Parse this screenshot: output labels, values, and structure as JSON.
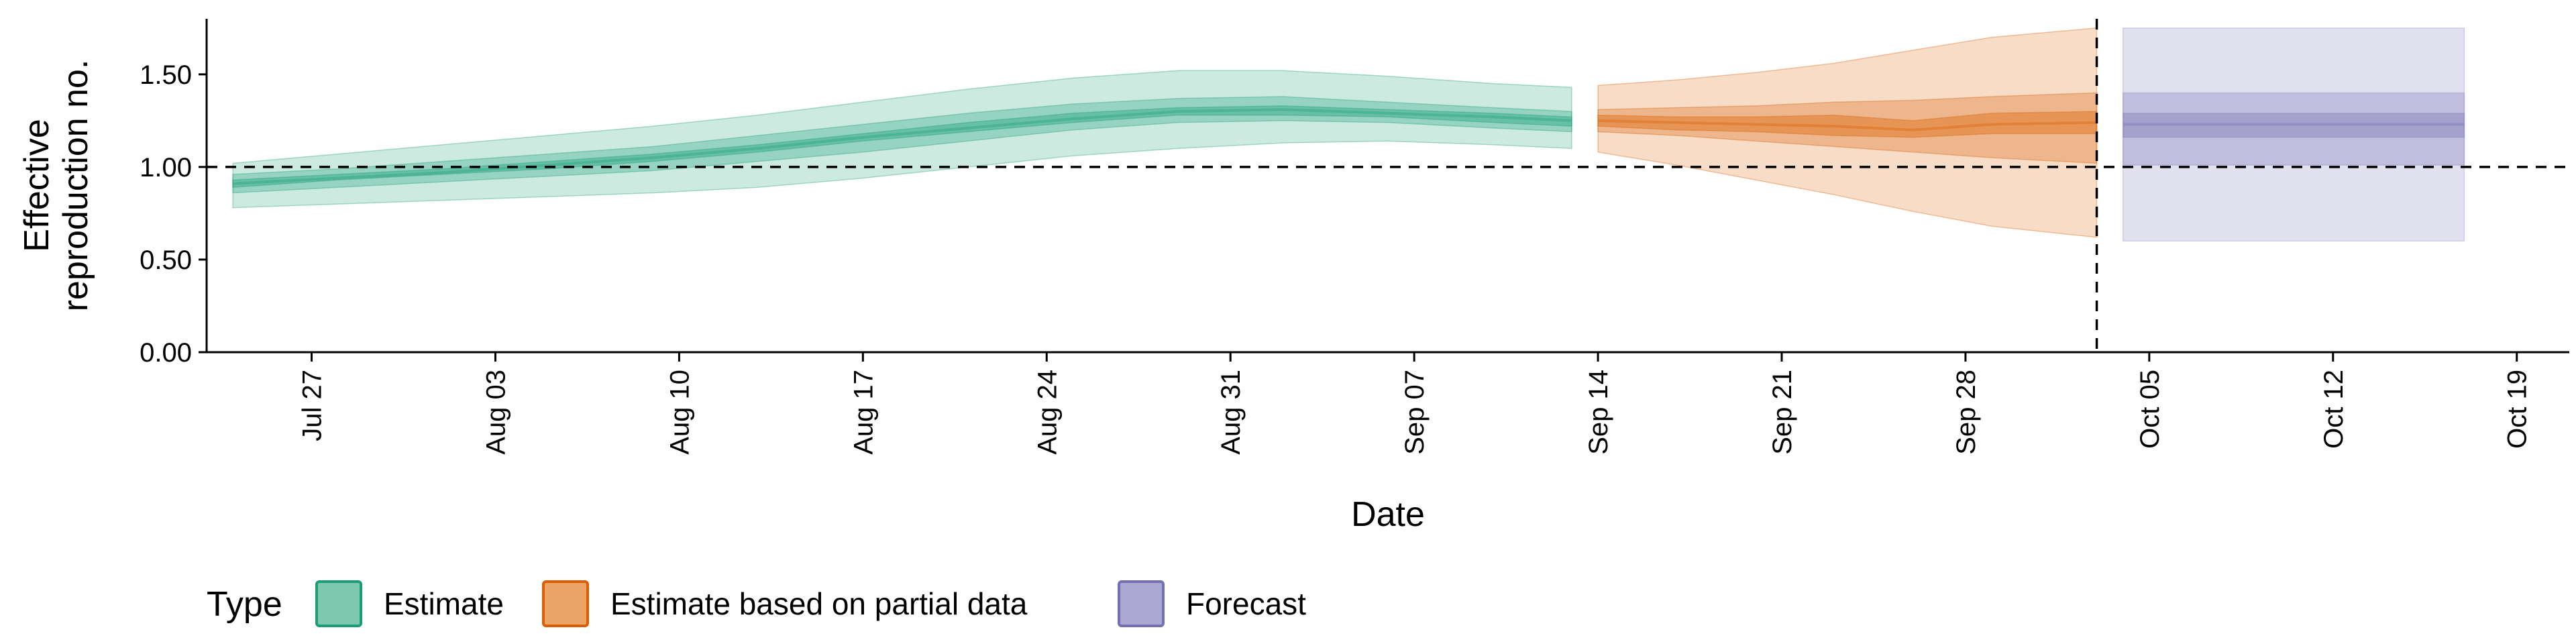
{
  "chart_data": {
    "type": "area",
    "xlabel": "Date",
    "ylabel_lines": [
      "Effective",
      "reproduction no."
    ],
    "ylim": [
      0,
      1.8
    ],
    "xlim": [
      "2020-07-23",
      "2020-10-21"
    ],
    "y_ticks": [
      {
        "value": 0.0,
        "label": "0.00"
      },
      {
        "value": 0.5,
        "label": "0.50"
      },
      {
        "value": 1.0,
        "label": "1.00"
      },
      {
        "value": 1.5,
        "label": "1.50"
      }
    ],
    "x_ticks": [
      {
        "date": "2020-07-27",
        "label": "Jul 27"
      },
      {
        "date": "2020-08-03",
        "label": "Aug 03"
      },
      {
        "date": "2020-08-10",
        "label": "Aug 10"
      },
      {
        "date": "2020-08-17",
        "label": "Aug 17"
      },
      {
        "date": "2020-08-24",
        "label": "Aug 24"
      },
      {
        "date": "2020-08-31",
        "label": "Aug 31"
      },
      {
        "date": "2020-09-07",
        "label": "Sep 07"
      },
      {
        "date": "2020-09-14",
        "label": "Sep 14"
      },
      {
        "date": "2020-09-21",
        "label": "Sep 21"
      },
      {
        "date": "2020-09-28",
        "label": "Sep 28"
      },
      {
        "date": "2020-10-05",
        "label": "Oct 05"
      },
      {
        "date": "2020-10-12",
        "label": "Oct 12"
      },
      {
        "date": "2020-10-19",
        "label": "Oct 19"
      }
    ],
    "hline": 1.0,
    "vline": "2020-10-03",
    "legend": {
      "title": "Type",
      "position": "bottom",
      "items": [
        {
          "label": "Estimate",
          "fill": "#7ec8b0",
          "stroke": "#1b9e77"
        },
        {
          "label": "Estimate based on partial data",
          "fill": "#eca468",
          "stroke": "#d95f02"
        },
        {
          "label": "Forecast",
          "fill": "#aaa8d2",
          "stroke": "#7570b3"
        }
      ]
    },
    "series": [
      {
        "type_label": "Estimate",
        "color": "#1b9e77",
        "band_style": "ribbon",
        "x": [
          "2020-07-24",
          "2020-07-28",
          "2020-08-01",
          "2020-08-05",
          "2020-08-09",
          "2020-08-13",
          "2020-08-17",
          "2020-08-21",
          "2020-08-25",
          "2020-08-29",
          "2020-09-02",
          "2020-09-06",
          "2020-09-10",
          "2020-09-13"
        ],
        "lower90": [
          0.78,
          0.8,
          0.82,
          0.84,
          0.86,
          0.89,
          0.94,
          1.0,
          1.06,
          1.1,
          1.13,
          1.14,
          1.12,
          1.1
        ],
        "lower50": [
          0.86,
          0.89,
          0.92,
          0.95,
          0.98,
          1.03,
          1.08,
          1.14,
          1.2,
          1.24,
          1.25,
          1.24,
          1.21,
          1.19
        ],
        "lower20": [
          0.89,
          0.93,
          0.96,
          0.99,
          1.03,
          1.08,
          1.14,
          1.19,
          1.24,
          1.28,
          1.28,
          1.27,
          1.24,
          1.22
        ],
        "median": [
          0.91,
          0.94,
          0.97,
          1.01,
          1.05,
          1.1,
          1.16,
          1.21,
          1.26,
          1.3,
          1.31,
          1.29,
          1.27,
          1.25
        ],
        "upper20": [
          0.93,
          0.96,
          0.99,
          1.03,
          1.07,
          1.12,
          1.18,
          1.24,
          1.29,
          1.32,
          1.33,
          1.31,
          1.29,
          1.27
        ],
        "upper50": [
          0.96,
          0.99,
          1.03,
          1.07,
          1.11,
          1.17,
          1.23,
          1.29,
          1.34,
          1.37,
          1.38,
          1.35,
          1.32,
          1.3
        ],
        "upper90": [
          1.02,
          1.07,
          1.12,
          1.17,
          1.22,
          1.28,
          1.35,
          1.42,
          1.48,
          1.52,
          1.52,
          1.49,
          1.45,
          1.43
        ]
      },
      {
        "type_label": "Estimate based on partial data",
        "color": "#d95f02",
        "band_style": "ribbon",
        "x": [
          "2020-09-14",
          "2020-09-17",
          "2020-09-20",
          "2020-09-23",
          "2020-09-26",
          "2020-09-29",
          "2020-10-03"
        ],
        "lower90": [
          1.08,
          1.01,
          0.93,
          0.85,
          0.76,
          0.68,
          0.62
        ],
        "lower50": [
          1.19,
          1.17,
          1.14,
          1.11,
          1.08,
          1.05,
          1.02
        ],
        "lower20": [
          1.22,
          1.2,
          1.19,
          1.17,
          1.16,
          1.18,
          1.18
        ],
        "median": [
          1.25,
          1.24,
          1.23,
          1.22,
          1.2,
          1.23,
          1.24
        ],
        "upper20": [
          1.28,
          1.27,
          1.27,
          1.28,
          1.25,
          1.29,
          1.3
        ],
        "upper50": [
          1.31,
          1.32,
          1.33,
          1.35,
          1.36,
          1.38,
          1.4
        ],
        "upper90": [
          1.44,
          1.47,
          1.51,
          1.56,
          1.63,
          1.7,
          1.75
        ]
      },
      {
        "type_label": "Forecast",
        "color": "#7570b3",
        "band_style": "rect",
        "x": [
          "2020-10-04",
          "2020-10-17"
        ],
        "lower90": [
          0.6,
          0.6
        ],
        "lower50": [
          1.01,
          1.01
        ],
        "lower20": [
          1.16,
          1.16
        ],
        "median": [
          1.23,
          1.23
        ],
        "upper20": [
          1.29,
          1.29
        ],
        "upper50": [
          1.4,
          1.4
        ],
        "upper90": [
          1.75,
          1.75
        ]
      }
    ]
  }
}
